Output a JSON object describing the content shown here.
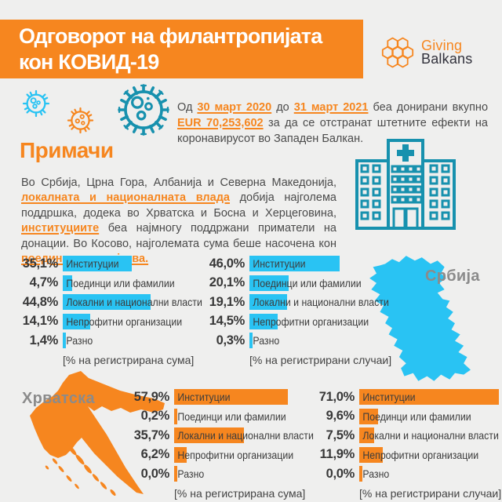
{
  "colors": {
    "background": "#EFEFEE",
    "accent_orange": "#F6861F",
    "accent_cyan": "#29C3F3",
    "accent_teal": "#1791AE",
    "text_dark": "#3C3C3C",
    "map_label_gray": "#8B8B8B",
    "title_white": "#FFFFFF"
  },
  "header": {
    "title_line1": "Одговорот на филантропијата",
    "title_line2": "кон КОВИД-19"
  },
  "logo": {
    "icon": "hex-flower-icon",
    "line1": "Giving",
    "line2": "Balkans"
  },
  "icons": {
    "viruses": [
      "virus-icon-cyan",
      "virus-icon-orange",
      "virus-icon-teal"
    ],
    "hospital": "hospital-icon"
  },
  "intro": {
    "segments": [
      {
        "t": "Од "
      },
      {
        "t": "30 март 2020",
        "hl": true
      },
      {
        "t": " до "
      },
      {
        "t": "31 март 2021",
        "hl": true
      },
      {
        "t": " беа донирани вкупно "
      },
      {
        "t": "EUR 70,253,602",
        "hl": true
      },
      {
        "t": " за да се отстранат штетните ефекти на коронавирусот во Западен Балкан."
      }
    ]
  },
  "recipients": {
    "heading": "Примачи",
    "segments": [
      {
        "t": "Во Србија, Црна Гора, Албанија и Северна Македонија, "
      },
      {
        "t": "локалната и националната влада",
        "hl": true
      },
      {
        "t": " добија најголема поддршка, додека во Хрватска и Босна и Херцеговина, "
      },
      {
        "t": "институциите",
        "hl": true
      },
      {
        "t": " беа најмногу поддржани приматели на донации. Во Косово, најголемата сума беше насочена кон "
      },
      {
        "t": "поединци и семејства.",
        "hl": true
      }
    ]
  },
  "maps": {
    "serbia_label": "Србија",
    "croatia_label": "Хрватска"
  },
  "chart_data": [
    {
      "type": "bar",
      "country": "Србија",
      "metric": "[% на регистрирана сума]",
      "color": "#29C3F3",
      "categories": [
        "Институции",
        "Поединци или фамилии",
        "Локални и национални власти",
        "Непрофитни организации",
        "Разно"
      ],
      "values": [
        35.1,
        4.7,
        44.8,
        14.1,
        1.4
      ],
      "labels": [
        "35,1%",
        "4,7%",
        "44,8%",
        "14,1%",
        "1,4%"
      ]
    },
    {
      "type": "bar",
      "country": "Србија",
      "metric": "[% на регистрирани случаи]",
      "color": "#29C3F3",
      "categories": [
        "Институции",
        "Поединци или фамилии",
        "Локални и национални власти",
        "Непрофитни организации",
        "Разно"
      ],
      "values": [
        46.0,
        20.1,
        19.1,
        14.5,
        0.3
      ],
      "labels": [
        "46,0%",
        "20,1%",
        "19,1%",
        "14,5%",
        "0,3%"
      ]
    },
    {
      "type": "bar",
      "country": "Хрватска",
      "metric": "[% на регистрирана сума]",
      "color": "#F6861F",
      "categories": [
        "Институции",
        "Поединци или фамилии",
        "Локални и национални власти",
        "Непрофитни организации",
        "Разно"
      ],
      "values": [
        57.9,
        0.2,
        35.7,
        6.2,
        0.0
      ],
      "labels": [
        "57,9%",
        "0,2%",
        "35,7%",
        "6,2%",
        "0,0%"
      ]
    },
    {
      "type": "bar",
      "country": "Хрватска",
      "metric": "[% на регистрирани случаи]",
      "color": "#F6861F",
      "categories": [
        "Институции",
        "Поединци или фамилии",
        "Локални и национални власти",
        "Непрофитни организации",
        "Разно"
      ],
      "values": [
        71.0,
        9.6,
        7.5,
        11.9,
        0.0
      ],
      "labels": [
        "71,0%",
        "9,6%",
        "7,5%",
        "11,9%",
        "0,0%"
      ]
    }
  ]
}
